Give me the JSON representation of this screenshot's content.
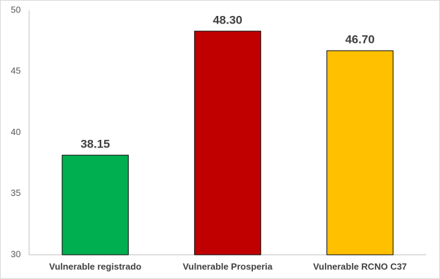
{
  "chart_data": {
    "type": "bar",
    "categories": [
      "Vulnerable registrado",
      "Vulnerable Prosperia",
      "Vulnerable RCNO C37"
    ],
    "values": [
      38.15,
      48.3,
      46.7
    ],
    "value_labels": [
      "38.15",
      "48.30",
      "46.70"
    ],
    "colors": [
      "#00b050",
      "#c00000",
      "#ffc000"
    ],
    "ylim": [
      30,
      50
    ],
    "yticks": [
      30,
      35,
      40,
      45,
      50
    ],
    "grid": false
  }
}
